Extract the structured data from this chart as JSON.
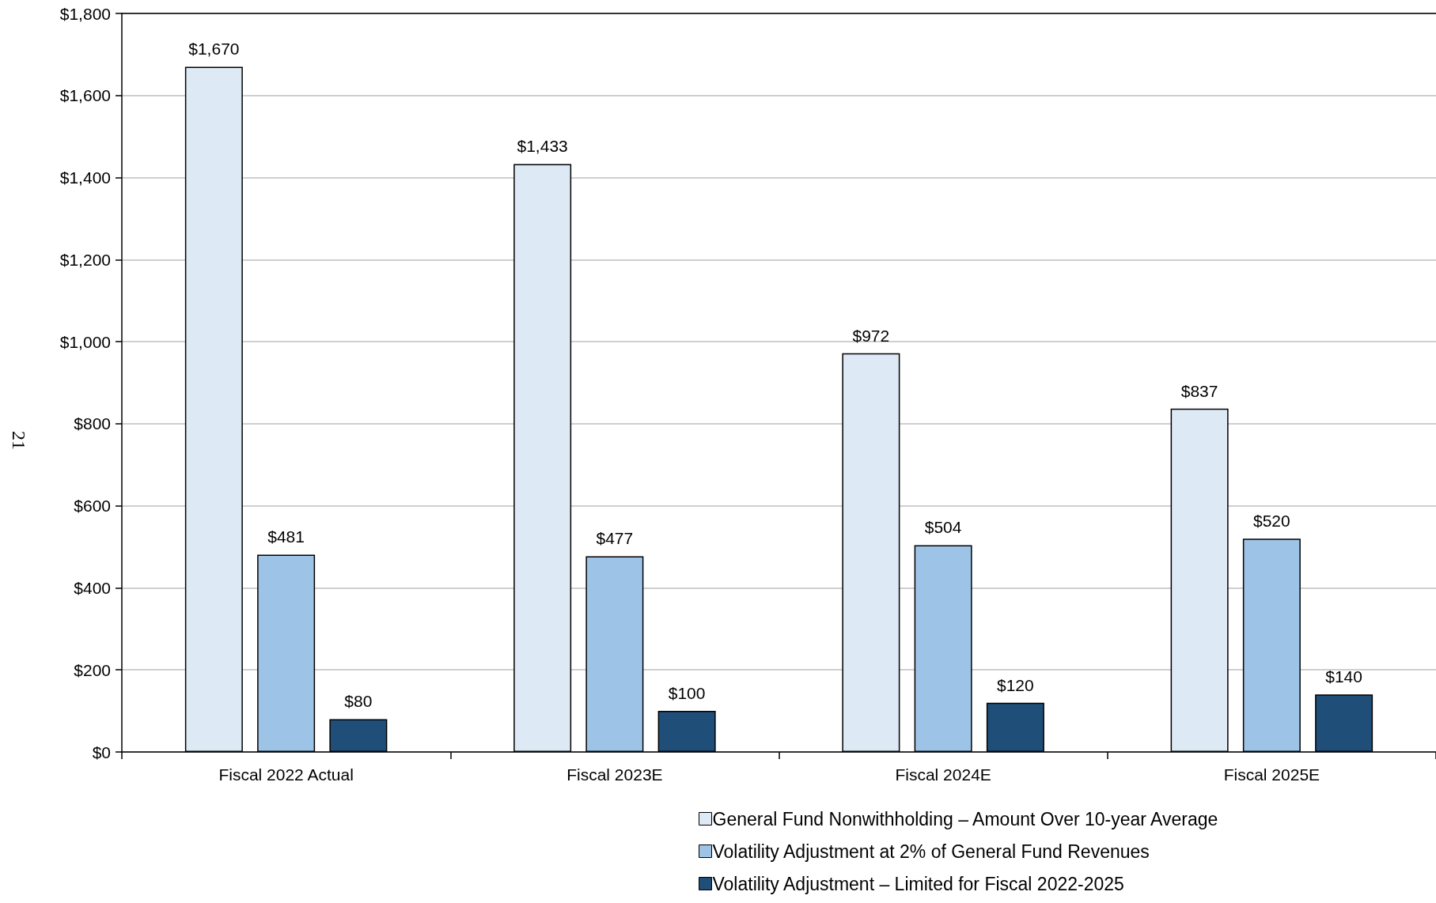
{
  "chart_data": {
    "type": "bar",
    "categories": [
      "Fiscal 2022 Actual",
      "Fiscal 2023E",
      "Fiscal 2024E",
      "Fiscal 2025E"
    ],
    "series": [
      {
        "name": "General Fund Nonwithholding – Amount Over 10-year Average",
        "color": "#dde9f5",
        "values": [
          1670,
          1433,
          972,
          837
        ],
        "value_labels": [
          "$1,670",
          "$1,433",
          "$972",
          "$837"
        ]
      },
      {
        "name": "Volatility Adjustment at 2% of General Fund Revenues",
        "color": "#9dc3e6",
        "values": [
          481,
          477,
          504,
          520
        ],
        "value_labels": [
          "$481",
          "$477",
          "$504",
          "$520"
        ]
      },
      {
        "name": "Volatility Adjustment – Limited for Fiscal 2022-2025",
        "color": "#1f4e79",
        "values": [
          80,
          100,
          120,
          140
        ],
        "value_labels": [
          "$80",
          "$100",
          "$120",
          "$140"
        ]
      }
    ],
    "ylim": [
      0,
      1800
    ],
    "yticks": [
      {
        "value": 0,
        "label": "$0"
      },
      {
        "value": 200,
        "label": "$200"
      },
      {
        "value": 400,
        "label": "$400"
      },
      {
        "value": 600,
        "label": "$600"
      },
      {
        "value": 800,
        "label": "$800"
      },
      {
        "value": 1000,
        "label": "$1,000"
      },
      {
        "value": 1200,
        "label": "$1,200"
      },
      {
        "value": 1400,
        "label": "$1,400"
      },
      {
        "value": 1600,
        "label": "$1,600"
      },
      {
        "value": 1800,
        "label": "$1,800"
      }
    ],
    "grid": "y",
    "legend": "bottom right",
    "annotations": [
      "21"
    ]
  }
}
